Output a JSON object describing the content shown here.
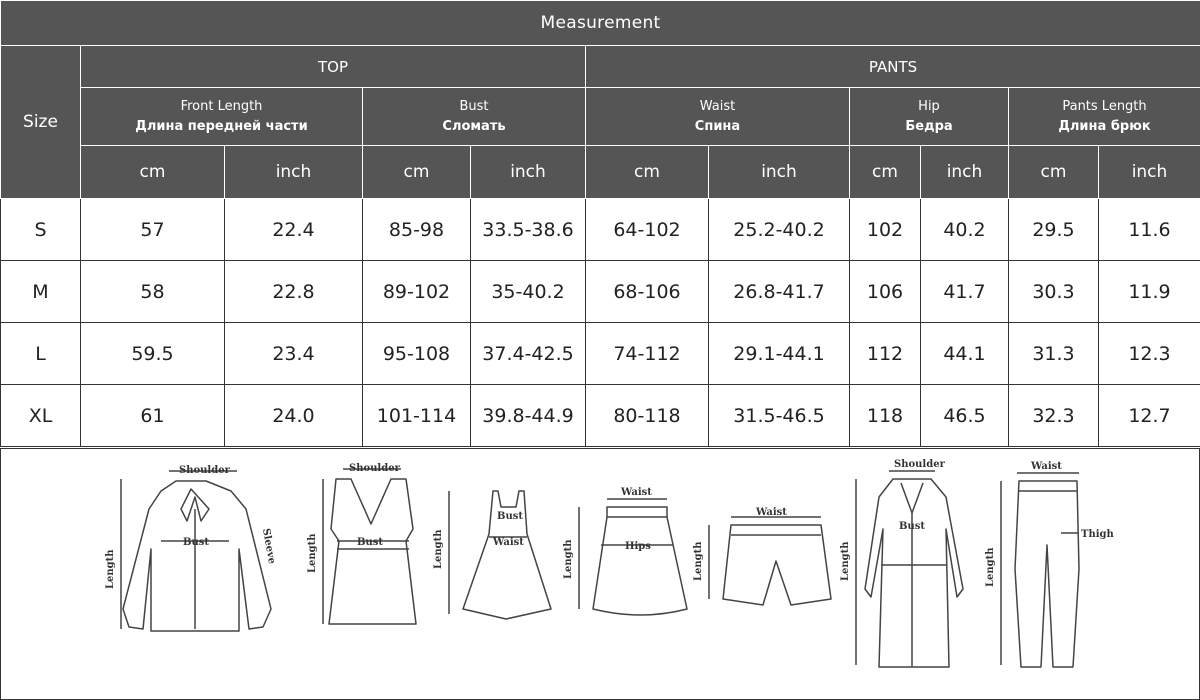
{
  "title": "Measurement",
  "groups": {
    "top": "TOP",
    "pants": "PANTS"
  },
  "size_label": "Size",
  "measurements": [
    {
      "en": "Front Length",
      "ru": "Длина передней части"
    },
    {
      "en": "Bust",
      "ru": "Сломать"
    },
    {
      "en": "Waist",
      "ru": "Спина"
    },
    {
      "en": "Hip",
      "ru": "Бедра"
    },
    {
      "en": "Pants Length",
      "ru": "Длина брюк"
    }
  ],
  "units": [
    "cm",
    "inch",
    "cm",
    "inch",
    "cm",
    "inch",
    "cm",
    "inch",
    "cm",
    "inch"
  ],
  "rows": [
    {
      "size": "S",
      "values": [
        "57",
        "22.4",
        "85-98",
        "33.5-38.6",
        "64-102",
        "25.2-40.2",
        "102",
        "40.2",
        "29.5",
        "11.6"
      ]
    },
    {
      "size": "M",
      "values": [
        "58",
        "22.8",
        "89-102",
        "35-40.2",
        "68-106",
        "26.8-41.7",
        "106",
        "41.7",
        "30.3",
        "11.9"
      ]
    },
    {
      "size": "L",
      "values": [
        "59.5",
        "23.4",
        "95-108",
        "37.4-42.5",
        "74-112",
        "29.1-44.1",
        "112",
        "44.1",
        "31.3",
        "12.3"
      ]
    },
    {
      "size": "XL",
      "values": [
        "61",
        "24.0",
        "101-114",
        "39.8-44.9",
        "80-118",
        "31.5-46.5",
        "118",
        "46.5",
        "32.3",
        "12.7"
      ]
    }
  ],
  "sketch_labels": {
    "shoulder": "Shoulder",
    "length": "Length",
    "bust": "Bust",
    "sleeve": "Sleeve",
    "waist": "Waist",
    "hips": "Hips",
    "thigh": "Thigh"
  }
}
